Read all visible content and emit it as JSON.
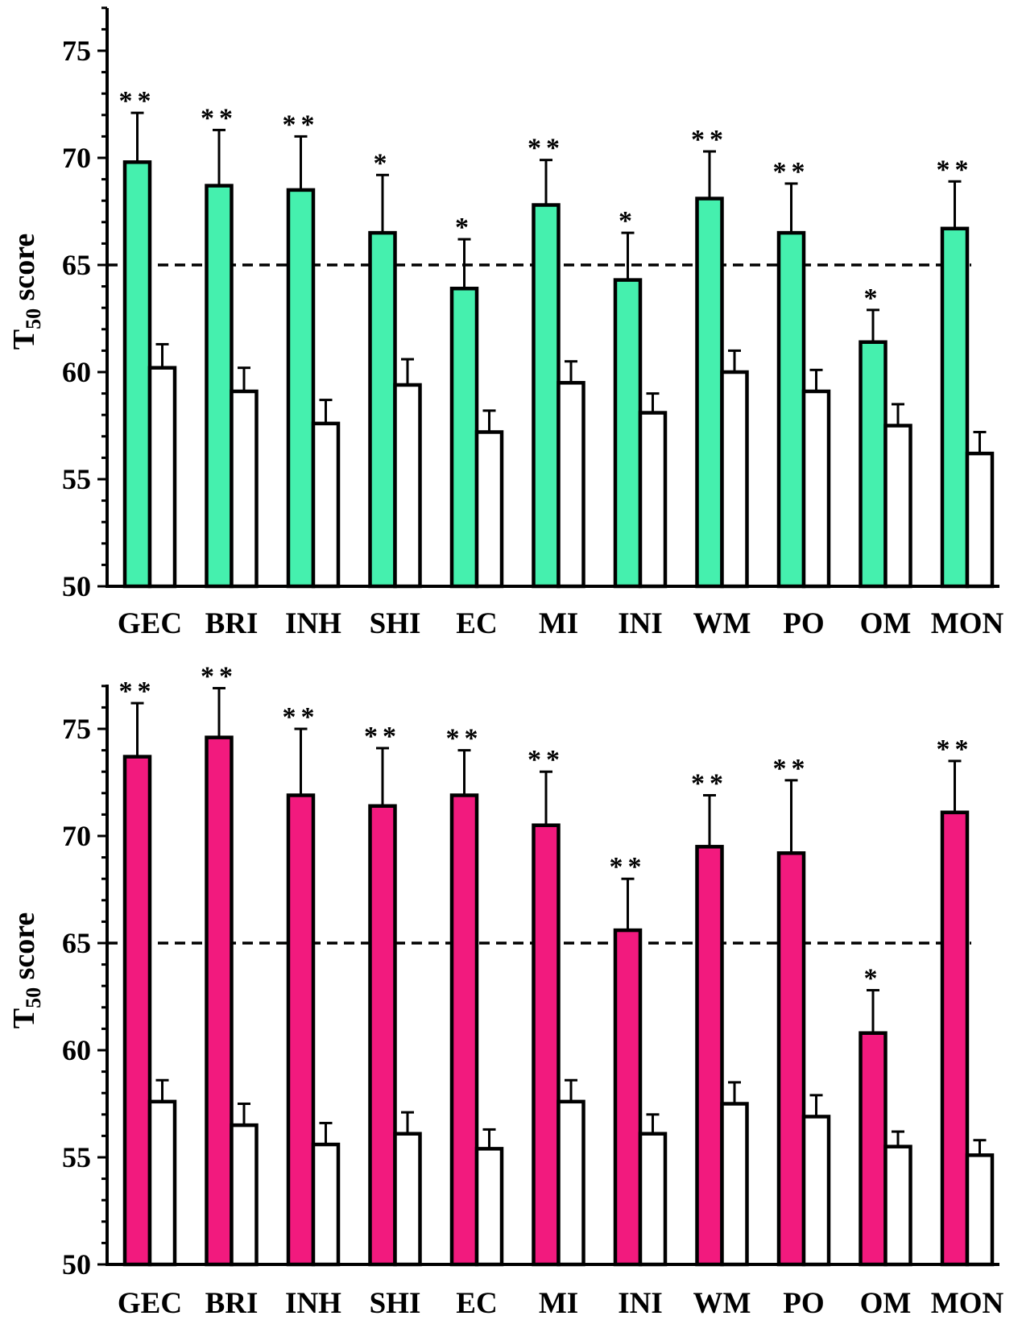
{
  "chart_data": [
    {
      "type": "bar",
      "ylabel": {
        "main": "T",
        "sub": "50",
        "rest": " score"
      },
      "ylim": [
        50,
        77
      ],
      "yticks": [
        50,
        55,
        60,
        65,
        70,
        75
      ],
      "reference_line": 65,
      "grid": false,
      "categories": [
        "GEC",
        "BRI",
        "INH",
        "SHI",
        "EC",
        "MI",
        "INI",
        "WM",
        "PO",
        "OM",
        "MON"
      ],
      "series": [
        {
          "color": "#45F0AE",
          "values": [
            69.8,
            68.7,
            68.5,
            66.5,
            63.9,
            67.8,
            64.3,
            68.1,
            66.5,
            61.4,
            66.7
          ],
          "errors": [
            2.3,
            2.6,
            2.5,
            2.7,
            2.3,
            2.1,
            2.2,
            2.2,
            2.3,
            1.5,
            2.2
          ],
          "significance": [
            "**",
            "**",
            "**",
            "*",
            "*",
            "**",
            "*",
            "**",
            "**",
            "*",
            "**"
          ]
        },
        {
          "color": "#FFFFFF",
          "values": [
            60.2,
            59.1,
            57.6,
            59.4,
            57.2,
            59.5,
            58.1,
            60.0,
            59.1,
            57.5,
            56.2
          ],
          "errors": [
            1.1,
            1.1,
            1.1,
            1.2,
            1.0,
            1.0,
            0.9,
            1.0,
            1.0,
            1.0,
            1.0
          ]
        }
      ]
    },
    {
      "type": "bar",
      "ylabel": {
        "main": "T",
        "sub": "50",
        "rest": " score"
      },
      "ylim": [
        50,
        77
      ],
      "yticks": [
        50,
        55,
        60,
        65,
        70,
        75
      ],
      "reference_line": 65,
      "grid": false,
      "categories": [
        "GEC",
        "BRI",
        "INH",
        "SHI",
        "EC",
        "MI",
        "INI",
        "WM",
        "PO",
        "OM",
        "MON"
      ],
      "series": [
        {
          "color": "#F21A7E",
          "values": [
            73.7,
            74.6,
            71.9,
            71.4,
            71.9,
            70.5,
            65.6,
            69.5,
            69.2,
            60.8,
            71.1
          ],
          "errors": [
            2.5,
            2.3,
            3.1,
            2.7,
            2.1,
            2.5,
            2.4,
            2.4,
            3.4,
            2.0,
            2.4
          ],
          "significance": [
            "**",
            "**",
            "**",
            "**",
            "**",
            "**",
            "**",
            "**",
            "**",
            "*",
            "**"
          ]
        },
        {
          "color": "#FFFFFF",
          "values": [
            57.6,
            56.5,
            55.6,
            56.1,
            55.4,
            57.6,
            56.1,
            57.5,
            56.9,
            55.5,
            55.1
          ],
          "errors": [
            1.0,
            1.0,
            1.0,
            1.0,
            0.9,
            1.0,
            0.9,
            1.0,
            1.0,
            0.7,
            0.7
          ]
        }
      ]
    }
  ]
}
